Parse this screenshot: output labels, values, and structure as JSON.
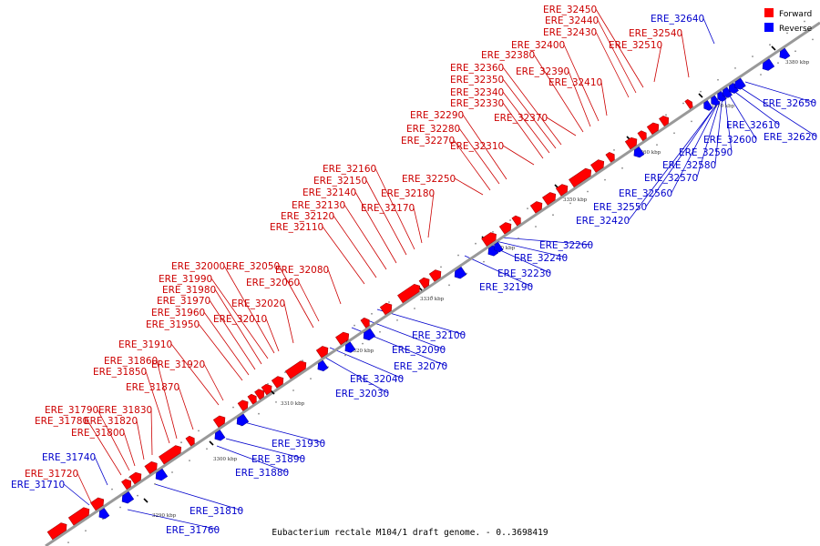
{
  "caption": "Eubacterium rectale M104/1 draft genome. - 0..3698419",
  "colors": {
    "forward": "#ff0000",
    "reverse": "#0000ff",
    "backbone": "#999999",
    "label_forward": "#cc0000",
    "label_reverse": "#0000cc"
  },
  "legend": [
    {
      "label": "Forward",
      "strand": "forward"
    },
    {
      "label": "Reverse",
      "strand": "reverse"
    }
  ],
  "scale_ticks": [
    "3290 kbp",
    "3300 kbp",
    "3310 kbp",
    "3320 kbp",
    "3330 kbp",
    "3340 kbp",
    "3350 kbp",
    "3360 kbp",
    "3370 kbp",
    "3380 kbp"
  ],
  "labels_forward": [
    "ERE_31720",
    "ERE_31780",
    "ERE_31790",
    "ERE_31800",
    "ERE_31820",
    "ERE_31830",
    "ERE_31850",
    "ERE_31860",
    "ERE_31870",
    "ERE_31910",
    "ERE_31920",
    "ERE_31950",
    "ERE_31960",
    "ERE_31970",
    "ERE_31980",
    "ERE_31990",
    "ERE_32000",
    "ERE_32010",
    "ERE_32020",
    "ERE_32050",
    "ERE_32060",
    "ERE_32080",
    "ERE_32110",
    "ERE_32120",
    "ERE_32130",
    "ERE_32140",
    "ERE_32150",
    "ERE_32160",
    "ERE_32170",
    "ERE_32180",
    "ERE_32250",
    "ERE_32270",
    "ERE_32280",
    "ERE_32290",
    "ERE_32310",
    "ERE_32330",
    "ERE_32340",
    "ERE_32350",
    "ERE_32360",
    "ERE_32370",
    "ERE_32380",
    "ERE_32390",
    "ERE_32400",
    "ERE_32410",
    "ERE_32430",
    "ERE_32440",
    "ERE_32450",
    "ERE_32510",
    "ERE_32540"
  ],
  "labels_reverse": [
    "ERE_31710",
    "ERE_31740",
    "ERE_31760",
    "ERE_31810",
    "ERE_31880",
    "ERE_31890",
    "ERE_31930",
    "ERE_32030",
    "ERE_32040",
    "ERE_32070",
    "ERE_32090",
    "ERE_32100",
    "ERE_32190",
    "ERE_32230",
    "ERE_32240",
    "ERE_32260",
    "ERE_32420",
    "ERE_32550",
    "ERE_32560",
    "ERE_32570",
    "ERE_32580",
    "ERE_32590",
    "ERE_32600",
    "ERE_32610",
    "ERE_32620",
    "ERE_32640",
    "ERE_32650"
  ]
}
